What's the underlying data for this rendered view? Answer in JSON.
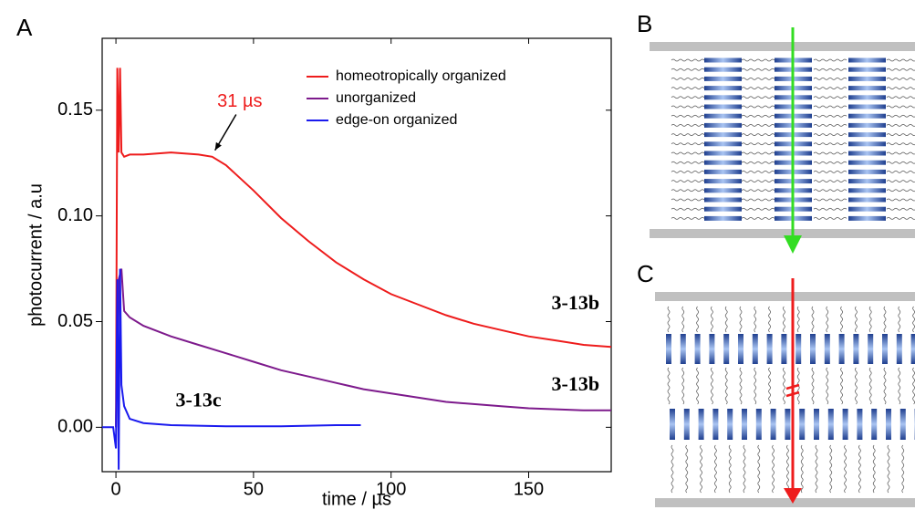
{
  "chart_data": {
    "type": "line",
    "x_label": "time / µs",
    "y_label": "photocurrent / a.u",
    "xlim": [
      -5,
      180
    ],
    "ylim": [
      -0.021,
      0.184
    ],
    "xticks": [
      0,
      50,
      100,
      150
    ],
    "yticks": [
      {
        "value": 0,
        "label": "0.00"
      },
      0.05,
      {
        "value": 0.1,
        "label": "0.10"
      },
      0.15
    ],
    "legend": "upper right",
    "series": [
      {
        "name": "homeotropically organized",
        "color": "#ee1c1c",
        "x": [
          0,
          0.5,
          1,
          1.5,
          2,
          3,
          5,
          10,
          20,
          30,
          35,
          40,
          50,
          60,
          70,
          80,
          90,
          100,
          110,
          120,
          130,
          140,
          150,
          160,
          170,
          180
        ],
        "values": [
          0,
          0.17,
          0.13,
          0.17,
          0.13,
          0.128,
          0.129,
          0.129,
          0.13,
          0.129,
          0.128,
          0.124,
          0.112,
          0.099,
          0.088,
          0.078,
          0.07,
          0.063,
          0.058,
          0.053,
          0.049,
          0.046,
          0.043,
          0.041,
          0.039,
          0.038
        ]
      },
      {
        "name": "unorganized",
        "color": "#7d1a8c",
        "x": [
          0,
          1,
          2,
          3,
          5,
          10,
          20,
          30,
          40,
          50,
          60,
          70,
          80,
          90,
          100,
          110,
          120,
          130,
          140,
          150,
          160,
          170,
          180
        ],
        "values": [
          0,
          0.07,
          0.075,
          0.055,
          0.052,
          0.048,
          0.043,
          0.039,
          0.035,
          0.031,
          0.027,
          0.024,
          0.021,
          0.018,
          0.016,
          0.014,
          0.012,
          0.011,
          0.01,
          0.009,
          0.0085,
          0.008,
          0.008
        ]
      },
      {
        "name": "edge-on organized",
        "color": "#1a1aee",
        "x": [
          -5,
          -1,
          0,
          0.5,
          1,
          1.5,
          2,
          3,
          5,
          10,
          20,
          40,
          60,
          80,
          89
        ],
        "values": [
          0,
          0,
          -0.01,
          0.07,
          -0.02,
          0.075,
          0.02,
          0.01,
          0.004,
          0.002,
          0.001,
          0.0005,
          0.0005,
          0.001,
          0.001
        ]
      }
    ],
    "annotations": [
      {
        "text": "31 µs",
        "x": 45,
        "y": 0.154,
        "color": "#ee1c1c",
        "arrow_to": [
          36,
          0.131
        ]
      },
      {
        "text": "3-13b",
        "x": 167,
        "y": 0.058,
        "font_weight": "bold",
        "font_family": "serif"
      },
      {
        "text": "3-13b",
        "x": 167,
        "y": 0.0195,
        "font_weight": "bold",
        "font_family": "serif"
      },
      {
        "text": "3-13c",
        "x": 30,
        "y": 0.012,
        "font_weight": "bold",
        "font_family": "serif"
      }
    ]
  },
  "panel_labels": [
    "A",
    "B",
    "C"
  ]
}
